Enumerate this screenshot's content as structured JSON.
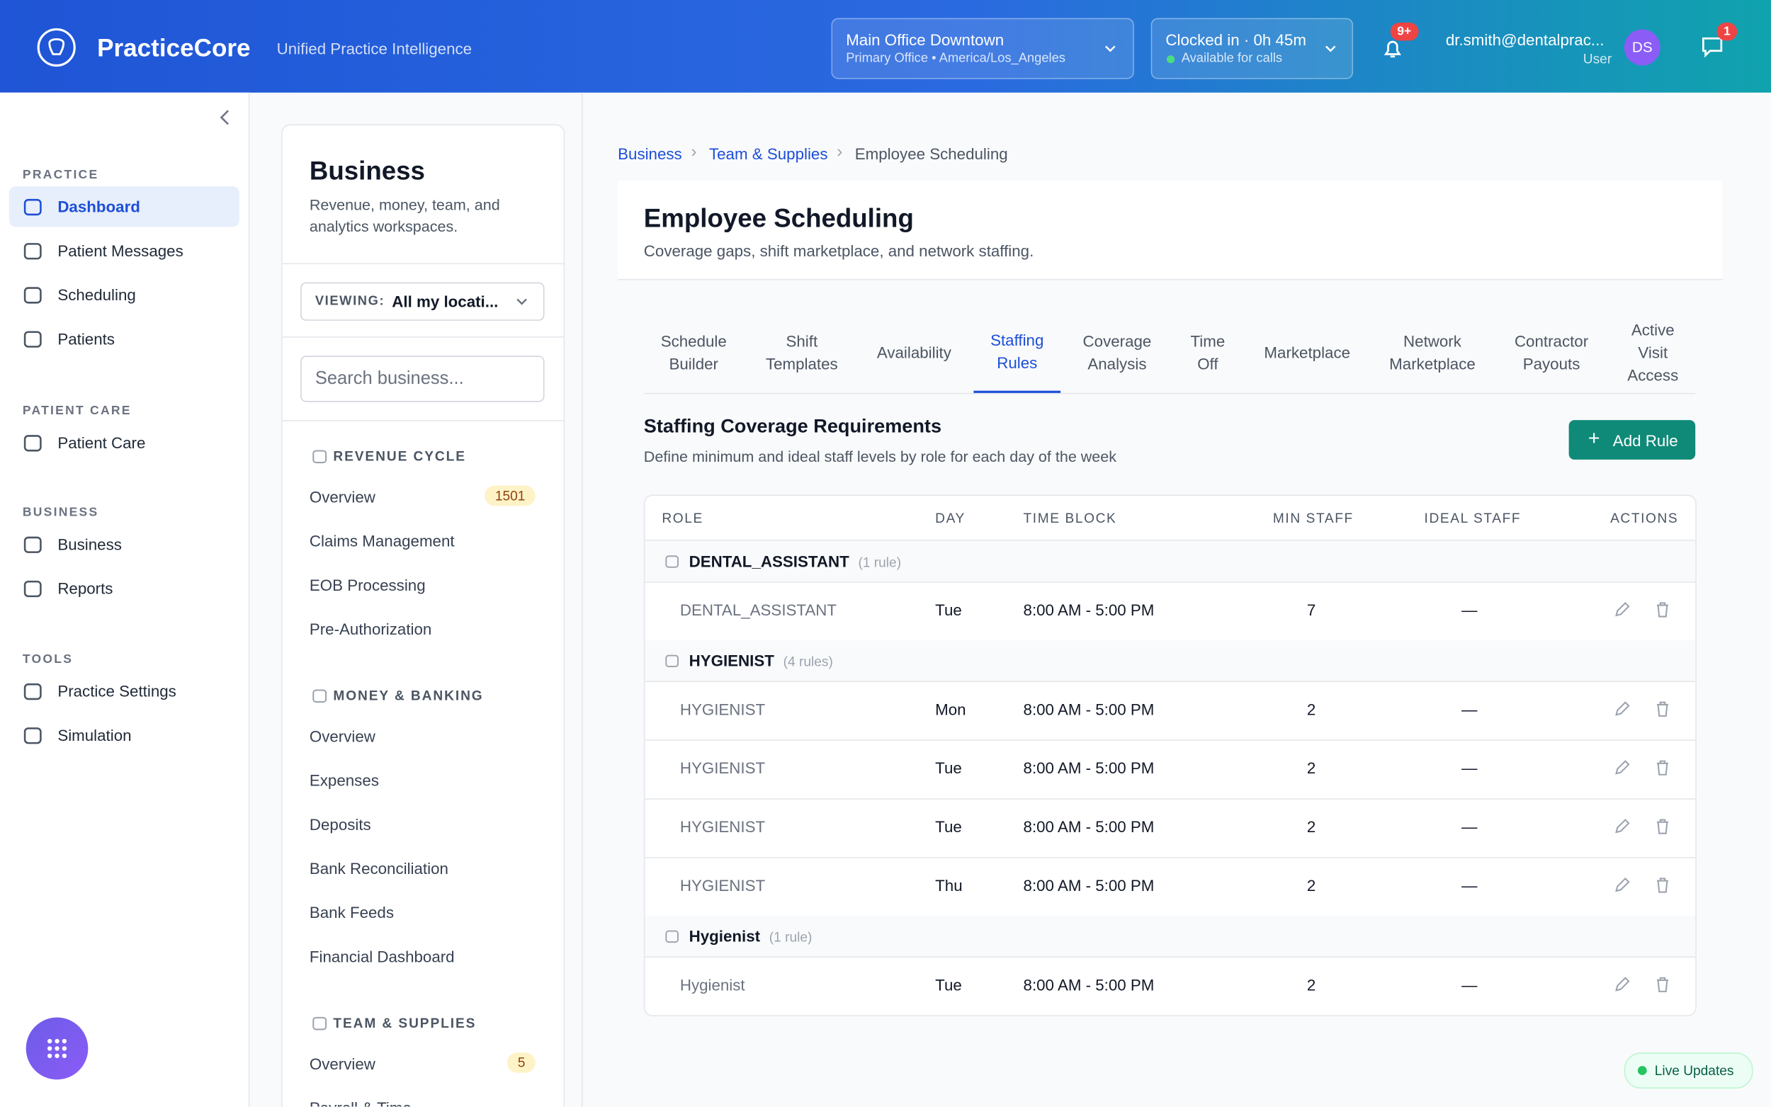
{
  "header": {
    "brand": "PracticeCore",
    "tagline": "Unified Practice Intelligence",
    "location": {
      "name": "Main Office Downtown",
      "sub": "Primary Office • America/Los_Angeles"
    },
    "clock": {
      "title": "Clocked in · 0h 45m",
      "sub": "Available for calls"
    },
    "notif_badge": "9+",
    "user": {
      "email": "dr.smith@dentalprac...",
      "role": "User",
      "initials": "DS"
    },
    "chat_badge": "1"
  },
  "sidebar": {
    "sections": [
      {
        "title": "PRACTICE",
        "items": [
          "Dashboard",
          "Patient Messages",
          "Scheduling",
          "Patients"
        ]
      },
      {
        "title": "PATIENT CARE",
        "items": [
          "Patient Care"
        ]
      },
      {
        "title": "BUSINESS",
        "items": [
          "Business",
          "Reports"
        ]
      },
      {
        "title": "TOOLS",
        "items": [
          "Practice Settings",
          "Simulation"
        ]
      }
    ]
  },
  "subnav": {
    "title": "Business",
    "desc": "Revenue, money, team, and analytics workspaces.",
    "viewing_label": "VIEWING:",
    "viewing_value": "All my locati...",
    "search_placeholder": "Search business...",
    "groups": [
      {
        "title": "REVENUE CYCLE",
        "items": [
          {
            "label": "Overview",
            "badge": "1501"
          },
          {
            "label": "Claims Management"
          },
          {
            "label": "EOB Processing"
          },
          {
            "label": "Pre-Authorization"
          }
        ]
      },
      {
        "title": "MONEY & BANKING",
        "items": [
          {
            "label": "Overview"
          },
          {
            "label": "Expenses"
          },
          {
            "label": "Deposits"
          },
          {
            "label": "Bank Reconciliation"
          },
          {
            "label": "Bank Feeds"
          },
          {
            "label": "Financial Dashboard"
          }
        ]
      },
      {
        "title": "TEAM & SUPPLIES",
        "items": [
          {
            "label": "Overview",
            "badge": "5"
          },
          {
            "label": "Payroll & Time"
          }
        ]
      }
    ]
  },
  "main": {
    "breadcrumb": [
      "Business",
      "Team & Supplies",
      "Employee Scheduling"
    ],
    "title": "Employee Scheduling",
    "subtitle": "Coverage gaps, shift marketplace, and network staffing.",
    "tabs": [
      "Schedule Builder",
      "Shift Templates",
      "Availability",
      "Staffing Rules",
      "Coverage Analysis",
      "Time Off",
      "Marketplace",
      "Network Marketplace",
      "Contractor Payouts",
      "Active Visit Access"
    ],
    "section_title": "Staffing Coverage Requirements",
    "section_desc": "Define minimum and ideal staff levels by role for each day of the week",
    "add_rule": "Add Rule",
    "table": {
      "columns": [
        "ROLE",
        "DAY",
        "TIME BLOCK",
        "MIN STAFF",
        "IDEAL STAFF",
        "ACTIONS"
      ],
      "groups": [
        {
          "name": "DENTAL_ASSISTANT",
          "count": "(1 rule)",
          "rows": [
            [
              "DENTAL_ASSISTANT",
              "Tue",
              "8:00 AM - 5:00 PM",
              7,
              "—"
            ]
          ]
        },
        {
          "name": "HYGIENIST",
          "count": "(4 rules)",
          "rows": [
            [
              "HYGIENIST",
              "Mon",
              "8:00 AM - 5:00 PM",
              2,
              "—"
            ],
            [
              "HYGIENIST",
              "Tue",
              "8:00 AM - 5:00 PM",
              2,
              "—"
            ],
            [
              "HYGIENIST",
              "Tue",
              "8:00 AM - 5:00 PM",
              2,
              "—"
            ],
            [
              "HYGIENIST",
              "Thu",
              "8:00 AM - 5:00 PM",
              2,
              "—"
            ]
          ]
        },
        {
          "name": "Hygienist",
          "count": "(1 rule)",
          "rows": [
            [
              "Hygienist",
              "Tue",
              "8:00 AM - 5:00 PM",
              2,
              "—"
            ]
          ]
        }
      ]
    }
  },
  "live": "Live Updates"
}
